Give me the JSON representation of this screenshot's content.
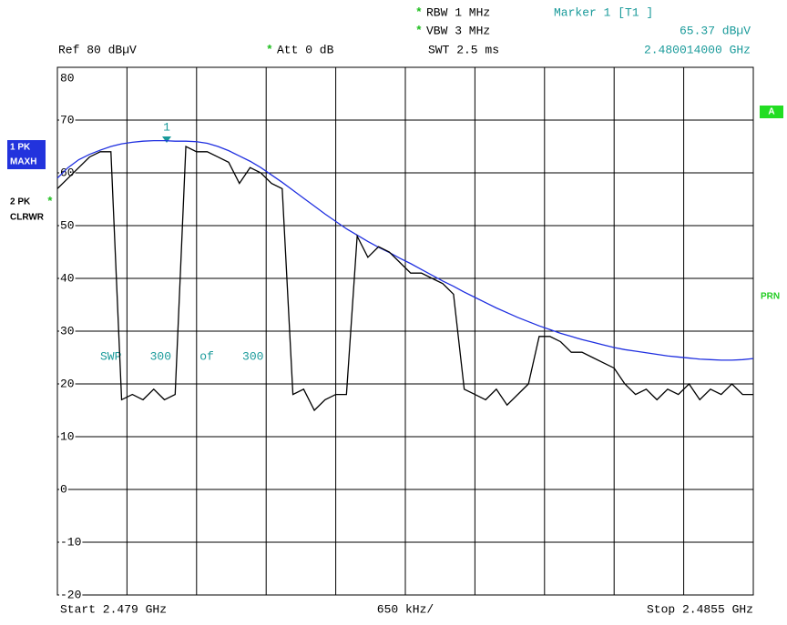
{
  "header": {
    "rbw": "RBW 1 MHz",
    "vbw": "VBW 3 MHz",
    "swt": "SWT 2.5 ms",
    "star": "*",
    "marker_name": "Marker 1 [T1 ]",
    "marker_level": "65.37 dBµV",
    "marker_freq": "2.480014000 GHz",
    "ref": "Ref 80 dBµV",
    "att": "Att 0 dB"
  },
  "side": {
    "trace1": "1 PK",
    "trace1_mode": "MAXH",
    "trace2": "2 PK",
    "trace2_mode": "CLRWR",
    "a": "A",
    "prn": "PRN"
  },
  "chart_data": {
    "type": "line",
    "sweep_label": "SWP 300 of 300",
    "marker_label": "1",
    "x_start_label": "Start 2.479 GHz",
    "x_div_label": "650 kHz/",
    "x_stop_label": "Stop 2.4855 GHz",
    "x": [
      2.479,
      2.4791,
      2.4792,
      2.4793,
      2.4794,
      2.4795,
      2.4796,
      2.4797,
      2.4798,
      2.4799,
      2.48,
      2.4801,
      2.4802,
      2.4803,
      2.4804,
      2.4805,
      2.4806,
      2.4807,
      2.4808,
      2.4809,
      2.481,
      2.4811,
      2.4812,
      2.4813,
      2.4814,
      2.4815,
      2.4816,
      2.4817,
      2.4818,
      2.4819,
      2.482,
      2.4821,
      2.4822,
      2.4823,
      2.4824,
      2.4825,
      2.4826,
      2.4827,
      2.4828,
      2.4829,
      2.483,
      2.4831,
      2.4832,
      2.4833,
      2.4834,
      2.4835,
      2.4836,
      2.4837,
      2.4838,
      2.4839,
      2.484,
      2.4841,
      2.4842,
      2.4843,
      2.4844,
      2.4845,
      2.4846,
      2.4847,
      2.4848,
      2.4849,
      2.485,
      2.4851,
      2.4852,
      2.4853,
      2.4854,
      2.4855
    ],
    "xlim": [
      2.479,
      2.4855
    ],
    "xticks": [
      2.479,
      2.47965,
      2.4803,
      2.48095,
      2.4816,
      2.48225,
      2.4829,
      2.48355,
      2.4842,
      2.48485,
      2.4855
    ],
    "ylim": [
      -20,
      80
    ],
    "yticks": [
      80,
      70,
      60,
      50,
      40,
      30,
      20,
      10,
      0,
      -10,
      -20
    ],
    "grid": true,
    "series": [
      {
        "name": "1 PK MAXH",
        "color": "#1f2fe0",
        "values": [
          59,
          61,
          62.5,
          63.5,
          64.3,
          65,
          65.5,
          65.8,
          66,
          66.1,
          66.1,
          66,
          66,
          65.9,
          65.6,
          65,
          64.2,
          63.2,
          62.2,
          61,
          59.6,
          58.2,
          56.7,
          55.2,
          53.7,
          52.2,
          50.8,
          49.4,
          48.2,
          47,
          45.9,
          44.9,
          43.8,
          42.8,
          41.7,
          40.6,
          39.5,
          38.5,
          37.4,
          36.4,
          35.4,
          34.4,
          33.5,
          32.6,
          31.8,
          31,
          30.3,
          29.6,
          29,
          28.4,
          27.9,
          27.4,
          26.9,
          26.5,
          26.2,
          25.9,
          25.6,
          25.3,
          25.1,
          24.9,
          24.7,
          24.6,
          24.5,
          24.5,
          24.6,
          24.8
        ]
      },
      {
        "name": "2 PK CLRWR",
        "color": "#000000",
        "values": [
          57,
          59,
          61,
          63,
          64,
          64,
          17,
          18,
          17,
          19,
          17,
          18,
          65,
          64,
          64,
          63,
          62,
          58,
          61,
          60,
          58,
          57,
          18,
          19,
          15,
          17,
          18,
          18,
          48,
          44,
          46,
          45,
          43,
          41,
          41,
          40,
          39,
          37,
          19,
          18,
          17,
          19,
          16,
          18,
          20,
          29,
          29,
          28,
          26,
          26,
          25,
          24,
          23,
          20,
          18,
          19,
          17,
          19,
          18,
          20,
          17,
          19,
          18,
          20,
          18,
          18
        ]
      }
    ]
  }
}
